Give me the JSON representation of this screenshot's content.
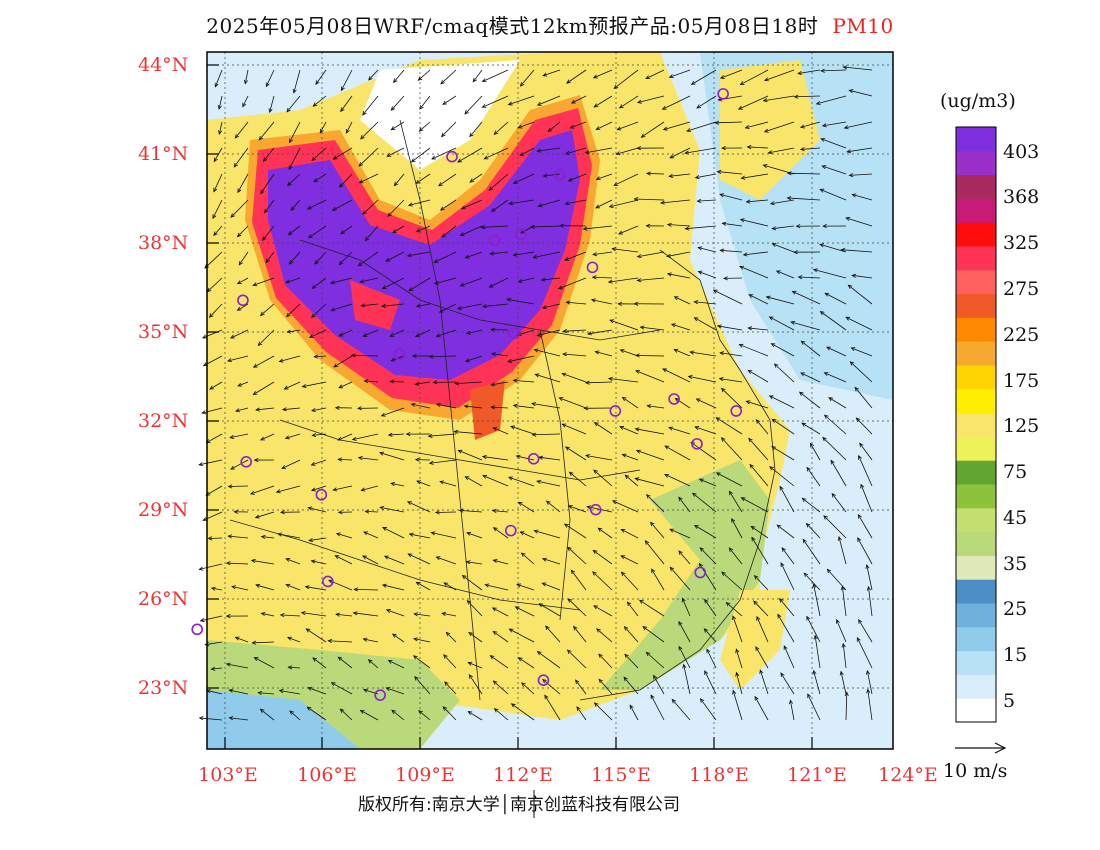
{
  "title": {
    "main": "2025年05月08日WRF/cmaq模式12km预报产品:05月08日18时",
    "product": "PM10"
  },
  "map": {
    "lat_labels": [
      "44°N",
      "41°N",
      "38°N",
      "35°N",
      "32°N",
      "29°N",
      "26°N",
      "23°N"
    ],
    "lon_labels": [
      "103°E",
      "106°E",
      "109°E",
      "112°E",
      "115°E",
      "118°E",
      "121°E",
      "124°E"
    ],
    "lat_range": [
      21,
      44.3
    ],
    "lon_range": [
      103,
      124
    ]
  },
  "legend": {
    "unit": "(ug/m3)",
    "bins": [
      {
        "color": "#ffffff"
      },
      {
        "color": "#d9eefa"
      },
      {
        "color": "#b7e1f4"
      },
      {
        "color": "#91cbec"
      },
      {
        "color": "#6fb0dc"
      },
      {
        "color": "#4b8fc6"
      },
      {
        "color": "#dfeab8"
      },
      {
        "color": "#b9d97a"
      },
      {
        "color": "#c3df70"
      },
      {
        "color": "#8cc23c"
      },
      {
        "color": "#63a531"
      },
      {
        "color": "#eef25a"
      },
      {
        "color": "#f8e56a"
      },
      {
        "color": "#ffee00"
      },
      {
        "color": "#ffd400"
      },
      {
        "color": "#f8a830"
      },
      {
        "color": "#ff8a00"
      },
      {
        "color": "#f05a28"
      },
      {
        "color": "#ff6060"
      },
      {
        "color": "#ff3355"
      },
      {
        "color": "#ff0d0d"
      },
      {
        "color": "#c81a78"
      },
      {
        "color": "#a82a5e"
      },
      {
        "color": "#9b30c8"
      },
      {
        "color": "#7f2ee0"
      }
    ],
    "labels": [
      "403",
      "368",
      "325",
      "275",
      "225",
      "175",
      "125",
      "75",
      "45",
      "35",
      "25",
      "15",
      "5"
    ]
  },
  "wind_legend": {
    "label": "10 m/s"
  },
  "copyright": "版权所有:南京大学│南京创蓝科技有限公司",
  "stations": [
    {
      "lon": 110.5,
      "lat": 40.8
    },
    {
      "lon": 118.8,
      "lat": 42.9
    },
    {
      "lon": 113.8,
      "lat": 40.2
    },
    {
      "lon": 111.8,
      "lat": 38.0
    },
    {
      "lon": 112.6,
      "lat": 38.2
    },
    {
      "lon": 114.8,
      "lat": 37.1
    },
    {
      "lon": 104.1,
      "lat": 36.0
    },
    {
      "lon": 112.4,
      "lat": 34.9
    },
    {
      "lon": 108.9,
      "lat": 34.2
    },
    {
      "lon": 115.5,
      "lat": 32.3
    },
    {
      "lon": 117.3,
      "lat": 32.7
    },
    {
      "lon": 119.2,
      "lat": 32.3
    },
    {
      "lon": 118.0,
      "lat": 31.2
    },
    {
      "lon": 104.2,
      "lat": 30.6
    },
    {
      "lon": 106.5,
      "lat": 29.5
    },
    {
      "lon": 113.0,
      "lat": 30.7
    },
    {
      "lon": 114.9,
      "lat": 29.0
    },
    {
      "lon": 112.3,
      "lat": 28.3
    },
    {
      "lon": 106.7,
      "lat": 26.6
    },
    {
      "lon": 118.1,
      "lat": 26.9
    },
    {
      "lon": 102.7,
      "lat": 25.0
    },
    {
      "lon": 113.3,
      "lat": 23.3
    },
    {
      "lon": 108.3,
      "lat": 22.8
    }
  ]
}
